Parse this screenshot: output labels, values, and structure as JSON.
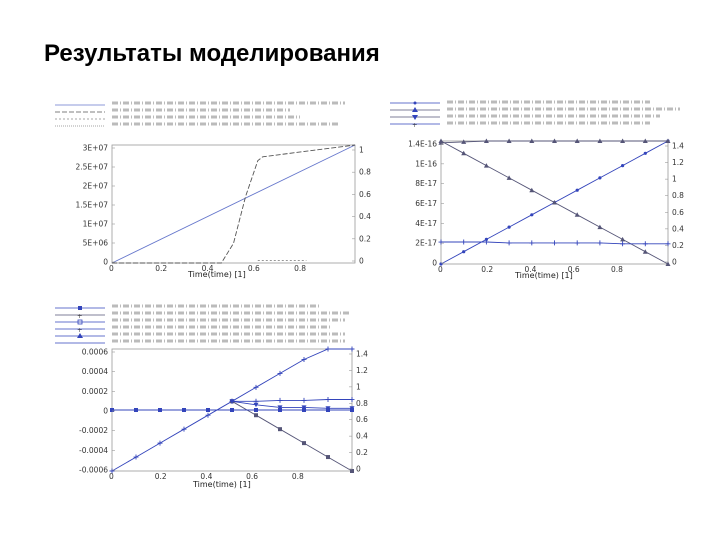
{
  "slide": {
    "title": "Результаты моделирования"
  },
  "chart_data": [
    {
      "type": "line",
      "id": "top-left",
      "xlabel": "Time(time) [1]",
      "xlim": [
        0,
        1
      ],
      "x_ticks": [
        "0",
        "0.2",
        "0.4",
        "0.6",
        "0.8"
      ],
      "y_left_ticks": [
        "3E+07",
        "2.5E+07",
        "2E+07",
        "1.5E+07",
        "1E+07",
        "5E+06",
        "0"
      ],
      "y_right_ticks": [
        "1",
        "0.8",
        "0.6",
        "0.4",
        "0.2",
        "0"
      ],
      "ylim_left": [
        0,
        30000000
      ],
      "ylim_right": [
        0,
        1.0
      ],
      "grid": false,
      "legend": "top",
      "series": [
        {
          "color": "#6677cc",
          "dash": "",
          "axis": "left",
          "x": [
            0,
            1
          ],
          "y": [
            0,
            30000000
          ]
        },
        {
          "color": "#555555",
          "dash": "5,2",
          "axis": "left",
          "x": [
            0,
            0.45,
            0.5,
            0.55,
            0.6,
            0.62,
            1
          ],
          "y": [
            0,
            0,
            5000000,
            17000000,
            26000000,
            27000000,
            30000000
          ]
        },
        {
          "color": "#888888",
          "dash": "2,2",
          "axis": "right",
          "x": [
            0.6,
            0.8
          ],
          "y": [
            0.02,
            0.02
          ]
        }
      ]
    },
    {
      "type": "line",
      "id": "top-right",
      "x_ticks": [
        "0",
        "0.2",
        "0.4",
        "0.6",
        "0.8"
      ],
      "xlabel": "Time(time) [1]",
      "xlim": [
        0,
        1
      ],
      "y_left_ticks": [
        "1.4E-16",
        "1E-16",
        "8E-17",
        "6E-17",
        "4E-17",
        "2E-17",
        "0"
      ],
      "y_right_ticks": [
        "1.4",
        "1.2",
        "1",
        "0.8",
        "0.6",
        "0.4",
        "0.2",
        "0"
      ],
      "ylim_left": [
        0,
        1.4e-16
      ],
      "ylim_right": [
        0,
        1.4
      ],
      "grid": false,
      "legend": "top",
      "series": [
        {
          "color": "#3344bb",
          "marker": "circle",
          "axis": "right",
          "x": [
            0,
            0.1,
            0.2,
            0.3,
            0.4,
            0.5,
            0.6,
            0.7,
            0.8,
            0.9,
            1
          ],
          "y": [
            0,
            0.14,
            0.28,
            0.42,
            0.56,
            0.7,
            0.84,
            0.98,
            1.12,
            1.26,
            1.4
          ]
        },
        {
          "color": "#555577",
          "marker": "triangle",
          "axis": "right",
          "x": [
            0,
            0.1,
            0.2,
            0.3,
            0.4,
            0.5,
            0.6,
            0.7,
            0.8,
            0.9,
            1
          ],
          "y": [
            1.4,
            1.26,
            1.12,
            0.98,
            0.84,
            0.7,
            0.56,
            0.42,
            0.28,
            0.14,
            0
          ]
        },
        {
          "color": "#3344bb",
          "marker": "plus",
          "axis": "right",
          "x": [
            0,
            0.1,
            0.2,
            0.3,
            0.4,
            0.5,
            0.6,
            0.7,
            0.8,
            0.9,
            1
          ],
          "y": [
            0.25,
            0.25,
            0.25,
            0.24,
            0.24,
            0.24,
            0.24,
            0.24,
            0.23,
            0.23,
            0.23
          ]
        },
        {
          "color": "#555577",
          "marker": "triangle",
          "axis": "right",
          "x": [
            0,
            0.1,
            0.2,
            0.3,
            0.4,
            0.5,
            0.6,
            0.7,
            0.8,
            0.9,
            1
          ],
          "y": [
            1.38,
            1.39,
            1.4,
            1.41,
            1.42,
            1.43,
            1.44,
            1.45,
            1.46,
            1.47,
            1.48
          ]
        }
      ]
    },
    {
      "type": "line",
      "id": "bottom",
      "x_ticks": [
        "0",
        "0.2",
        "0.4",
        "0.6",
        "0.8"
      ],
      "xlabel": "Time(time) [1]",
      "xlim": [
        0,
        1
      ],
      "y_left_ticks": [
        "0.0006",
        "0.0004",
        "0.0002",
        "0",
        "-0.0002",
        "-0.0004",
        "-0.0006"
      ],
      "y_right_ticks": [
        "1.4",
        "1.2",
        "1",
        "0.8",
        "0.6",
        "0.4",
        "0.2",
        "0"
      ],
      "ylim_left": [
        -0.0007,
        0.0007
      ],
      "ylim_right": [
        0,
        1.4
      ],
      "grid": false,
      "legend": "top",
      "series": [
        {
          "color": "#3344bb",
          "marker": "square",
          "axis": "left",
          "x": [
            0,
            0.1,
            0.2,
            0.3,
            0.4,
            0.5,
            0.6,
            0.7,
            0.8,
            0.9,
            1
          ],
          "y": [
            0,
            0,
            0,
            0,
            0,
            0,
            0,
            0,
            0,
            0,
            0
          ]
        },
        {
          "color": "#3344bb",
          "marker": "plus",
          "axis": "right",
          "x": [
            0,
            0.1,
            0.2,
            0.3,
            0.4,
            0.5,
            0.6,
            0.7,
            0.8,
            0.9,
            1
          ],
          "y": [
            0,
            0.16,
            0.32,
            0.48,
            0.64,
            0.8,
            0.96,
            1.12,
            1.28,
            1.44,
            1.6
          ]
        },
        {
          "color": "#555577",
          "marker": "square",
          "axis": "right",
          "x": [
            0.5,
            0.6,
            0.7,
            0.8,
            0.9,
            1
          ],
          "y": [
            0.8,
            0.64,
            0.48,
            0.32,
            0.16,
            0.0
          ]
        },
        {
          "color": "#3344bb",
          "marker": "plus",
          "axis": "right",
          "x": [
            0.5,
            0.6,
            0.7,
            0.8,
            0.9,
            1
          ],
          "y": [
            0.8,
            0.8,
            0.81,
            0.81,
            0.82,
            0.82
          ]
        },
        {
          "color": "#3344bb",
          "marker": "tri",
          "axis": "right",
          "x": [
            0.5,
            0.6,
            0.7,
            0.8,
            0.9,
            1
          ],
          "y": [
            0.8,
            0.76,
            0.73,
            0.73,
            0.72,
            0.72
          ]
        },
        {
          "color": "#3344bb",
          "marker": "none",
          "axis": "left",
          "x": [
            0,
            1
          ],
          "y": [
            0,
            0
          ]
        }
      ]
    }
  ]
}
